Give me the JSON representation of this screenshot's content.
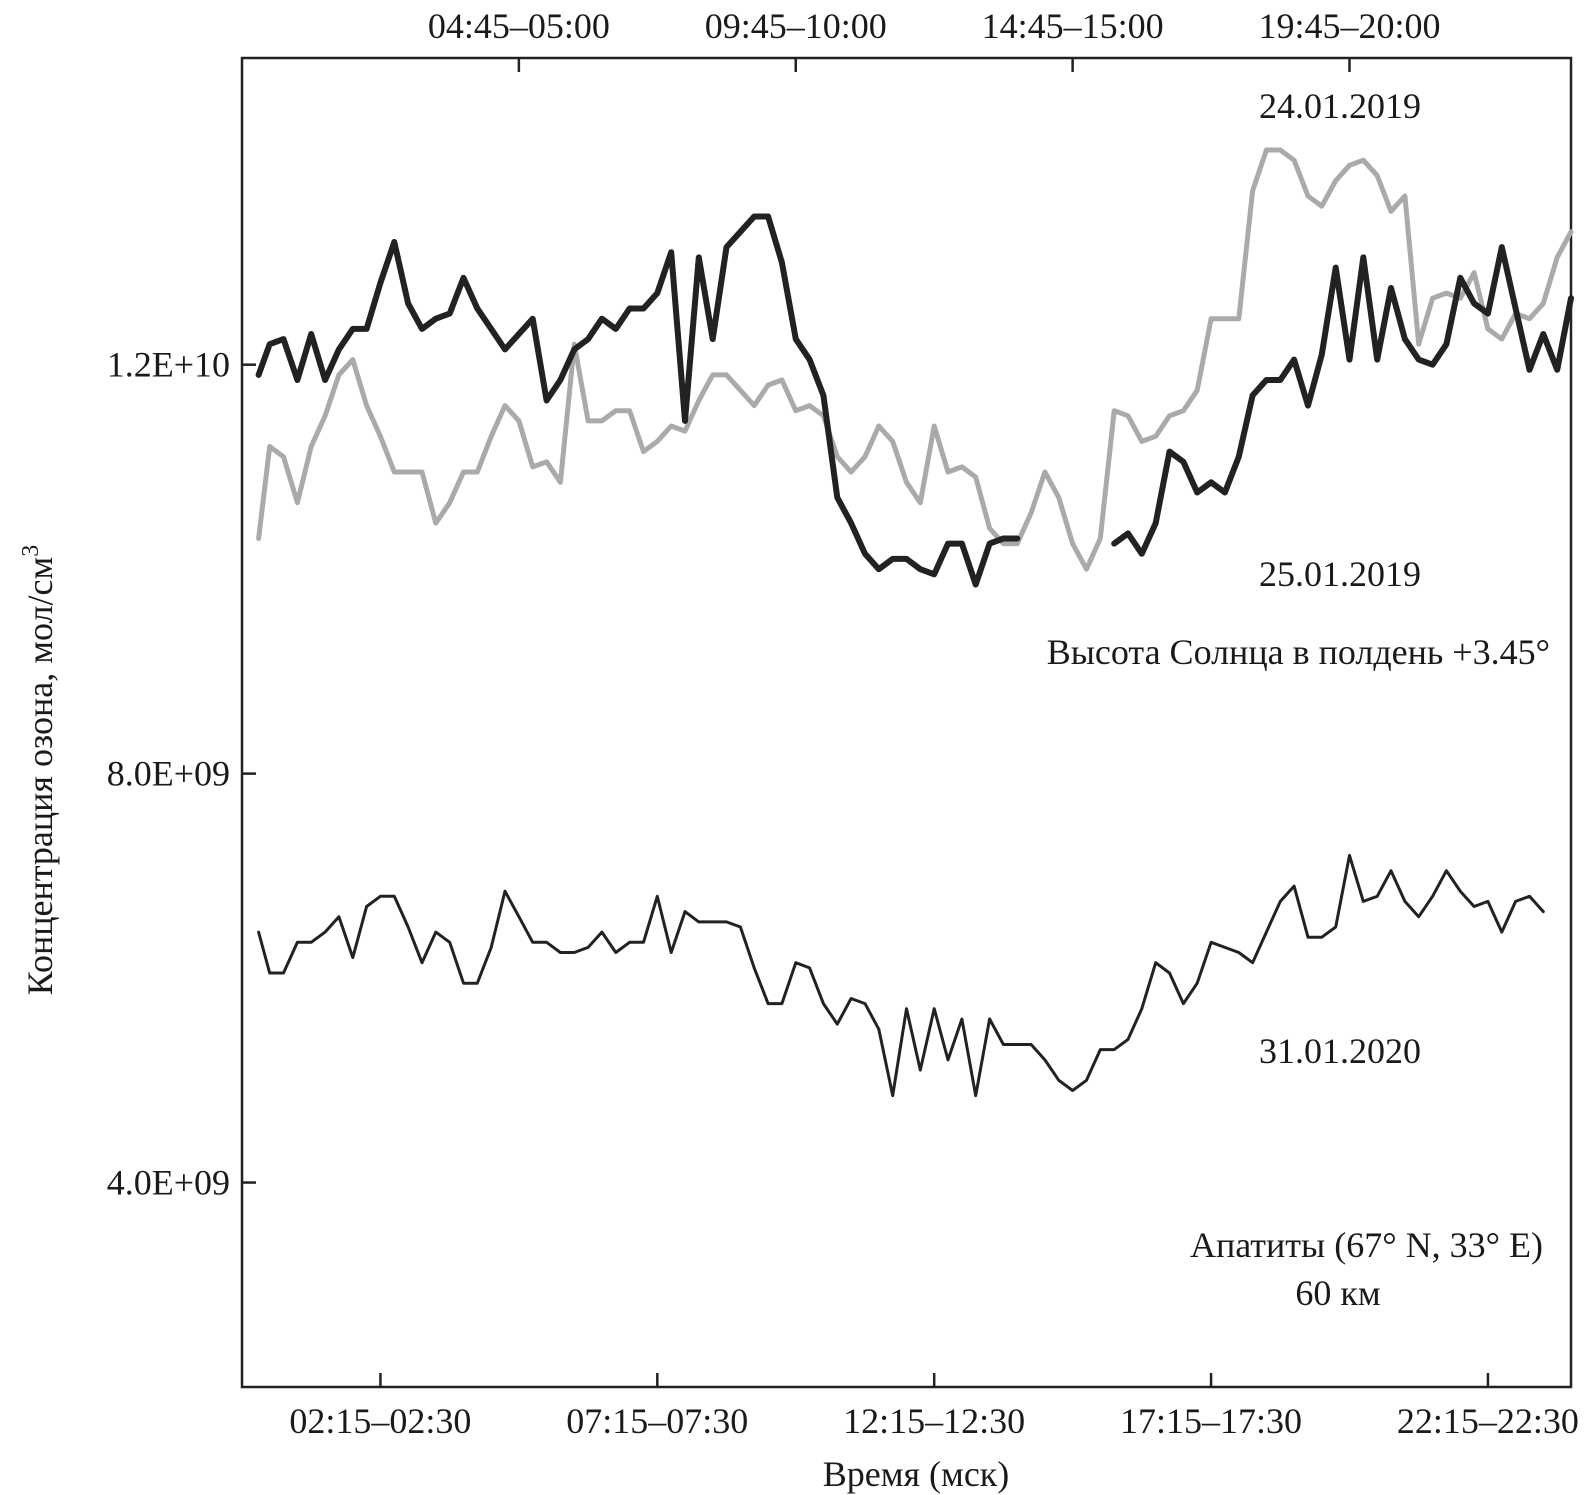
{
  "chart_data": {
    "type": "line",
    "xlabel": "Время (мск)",
    "ylabel": "Концентрация озона, мол/см",
    "ylabel_superscript": "3",
    "xlim": [
      0,
      48
    ],
    "ylim": [
      2000000000,
      15000000000
    ],
    "x_ticks_bottom": [
      {
        "x": 5,
        "label": "02:15–02:30"
      },
      {
        "x": 15,
        "label": "07:15–07:30"
      },
      {
        "x": 25,
        "label": "12:15–12:30"
      },
      {
        "x": 35,
        "label": "17:15–17:30"
      },
      {
        "x": 45,
        "label": "22:15–22:30"
      }
    ],
    "x_ticks_top": [
      {
        "x": 10,
        "label": "04:45–05:00"
      },
      {
        "x": 20,
        "label": "09:45–10:00"
      },
      {
        "x": 30,
        "label": "14:45–15:00"
      },
      {
        "x": 40,
        "label": "19:45–20:00"
      }
    ],
    "y_ticks": [
      {
        "y": 4000000000,
        "label": "4.0E+09"
      },
      {
        "y": 8000000000,
        "label": "8.0E+09"
      },
      {
        "y": 12000000000,
        "label": "1.2E+10"
      }
    ],
    "annotations": [
      {
        "id": "label-24",
        "text": "24.01.2019"
      },
      {
        "id": "label-25",
        "text": "25.01.2019"
      },
      {
        "id": "sun-height",
        "text": "Высота Солнца в полдень +3.45°"
      },
      {
        "id": "label-31",
        "text": "31.01.2020"
      },
      {
        "id": "station",
        "text": "Апатиты (67° N, 33° E)"
      },
      {
        "id": "altitude",
        "text": "60 км"
      }
    ],
    "series": [
      {
        "name": "24.01.2019",
        "color": "#aaaaaa",
        "width": 5,
        "points": [
          [
            0.6,
            10.3
          ],
          [
            1.0,
            11.2
          ],
          [
            1.5,
            11.1
          ],
          [
            2.0,
            10.65
          ],
          [
            2.5,
            11.2
          ],
          [
            3.0,
            11.5
          ],
          [
            3.5,
            11.9
          ],
          [
            4.0,
            12.05
          ],
          [
            4.5,
            11.6
          ],
          [
            5.0,
            11.3
          ],
          [
            5.5,
            10.95
          ],
          [
            6.0,
            10.95
          ],
          [
            6.5,
            10.95
          ],
          [
            7.0,
            10.45
          ],
          [
            7.5,
            10.65
          ],
          [
            8.0,
            10.95
          ],
          [
            8.5,
            10.95
          ],
          [
            9.0,
            11.3
          ],
          [
            9.5,
            11.6
          ],
          [
            10.0,
            11.45
          ],
          [
            10.5,
            11.0
          ],
          [
            11.0,
            11.05
          ],
          [
            11.5,
            10.85
          ],
          [
            12.0,
            12.2
          ],
          [
            12.5,
            11.45
          ],
          [
            13.0,
            11.45
          ],
          [
            13.5,
            11.55
          ],
          [
            14.0,
            11.55
          ],
          [
            14.5,
            11.15
          ],
          [
            15.0,
            11.25
          ],
          [
            15.5,
            11.4
          ],
          [
            16.0,
            11.35
          ],
          [
            16.5,
            11.65
          ],
          [
            17.0,
            11.9
          ],
          [
            17.5,
            11.9
          ],
          [
            18.0,
            11.75
          ],
          [
            18.5,
            11.6
          ],
          [
            19.0,
            11.8
          ],
          [
            19.5,
            11.85
          ],
          [
            20.0,
            11.55
          ],
          [
            20.5,
            11.6
          ],
          [
            21.0,
            11.5
          ],
          [
            21.5,
            11.1
          ],
          [
            22.0,
            10.95
          ],
          [
            22.5,
            11.1
          ],
          [
            23.0,
            11.4
          ],
          [
            23.5,
            11.25
          ],
          [
            24.0,
            10.85
          ],
          [
            24.5,
            10.65
          ],
          [
            25.0,
            11.4
          ],
          [
            25.5,
            10.95
          ],
          [
            26.0,
            11.0
          ],
          [
            26.5,
            10.9
          ],
          [
            27.0,
            10.4
          ],
          [
            27.5,
            10.25
          ],
          [
            28.0,
            10.25
          ],
          [
            28.5,
            10.55
          ],
          [
            29.0,
            10.95
          ],
          [
            29.5,
            10.7
          ],
          [
            30.0,
            10.25
          ],
          [
            30.5,
            10.0
          ],
          [
            31.0,
            10.3
          ],
          [
            31.5,
            11.55
          ],
          [
            32.0,
            11.5
          ],
          [
            32.5,
            11.25
          ],
          [
            33.0,
            11.3
          ],
          [
            33.5,
            11.5
          ],
          [
            34.0,
            11.55
          ],
          [
            34.5,
            11.75
          ],
          [
            35.0,
            12.45
          ],
          [
            35.5,
            12.45
          ],
          [
            36.0,
            12.45
          ],
          [
            36.5,
            13.7
          ],
          [
            37.0,
            14.1
          ],
          [
            37.5,
            14.1
          ],
          [
            38.0,
            14.0
          ],
          [
            38.5,
            13.65
          ],
          [
            39.0,
            13.55
          ],
          [
            39.5,
            13.8
          ],
          [
            40.0,
            13.95
          ],
          [
            40.5,
            14.0
          ],
          [
            41.0,
            13.85
          ],
          [
            41.5,
            13.5
          ],
          [
            42.0,
            13.65
          ],
          [
            42.5,
            12.2
          ],
          [
            43.0,
            12.65
          ],
          [
            43.5,
            12.7
          ],
          [
            44.0,
            12.65
          ],
          [
            44.5,
            12.9
          ],
          [
            45.0,
            12.35
          ],
          [
            45.5,
            12.25
          ],
          [
            46.0,
            12.5
          ],
          [
            46.5,
            12.45
          ],
          [
            47.0,
            12.6
          ],
          [
            47.5,
            13.05
          ],
          [
            48.0,
            13.3
          ]
        ]
      },
      {
        "name": "25.01.2019",
        "color": "#222222",
        "width": 6,
        "points": [
          [
            0.6,
            11.9
          ],
          [
            1.0,
            12.2
          ],
          [
            1.5,
            12.25
          ],
          [
            2.0,
            11.85
          ],
          [
            2.5,
            12.3
          ],
          [
            3.0,
            11.85
          ],
          [
            3.5,
            12.15
          ],
          [
            4.0,
            12.35
          ],
          [
            4.5,
            12.35
          ],
          [
            5.0,
            12.8
          ],
          [
            5.5,
            13.2
          ],
          [
            6.0,
            12.6
          ],
          [
            6.5,
            12.35
          ],
          [
            7.0,
            12.45
          ],
          [
            7.5,
            12.5
          ],
          [
            8.0,
            12.85
          ],
          [
            8.5,
            12.55
          ],
          [
            9.0,
            12.35
          ],
          [
            9.5,
            12.15
          ],
          [
            10.0,
            12.3
          ],
          [
            10.5,
            12.45
          ],
          [
            11.0,
            11.65
          ],
          [
            11.5,
            11.85
          ],
          [
            12.0,
            12.15
          ],
          [
            12.5,
            12.25
          ],
          [
            13.0,
            12.45
          ],
          [
            13.5,
            12.35
          ],
          [
            14.0,
            12.55
          ],
          [
            14.5,
            12.55
          ],
          [
            15.0,
            12.7
          ],
          [
            15.5,
            13.1
          ],
          [
            16.0,
            11.45
          ],
          [
            16.5,
            13.05
          ],
          [
            17.0,
            12.25
          ],
          [
            17.5,
            13.15
          ],
          [
            18.0,
            13.3
          ],
          [
            18.5,
            13.45
          ],
          [
            19.0,
            13.45
          ],
          [
            19.5,
            13.0
          ],
          [
            20.0,
            12.25
          ],
          [
            20.5,
            12.05
          ],
          [
            21.0,
            11.7
          ],
          [
            21.5,
            10.7
          ],
          [
            22.0,
            10.45
          ],
          [
            22.5,
            10.15
          ],
          [
            23.0,
            10.0
          ],
          [
            23.5,
            10.1
          ],
          [
            24.0,
            10.1
          ],
          [
            24.5,
            10.0
          ],
          [
            25.0,
            9.95
          ],
          [
            25.5,
            10.25
          ],
          [
            26.0,
            10.25
          ],
          [
            26.5,
            9.85
          ],
          [
            27.0,
            10.25
          ],
          [
            27.5,
            10.3
          ],
          [
            28.0,
            10.3
          ],
          [
            29.0,
            null
          ],
          [
            30.0,
            null
          ],
          [
            31.0,
            null
          ],
          [
            31.5,
            10.25
          ],
          [
            32.0,
            10.35
          ],
          [
            32.5,
            10.15
          ],
          [
            33.0,
            10.45
          ],
          [
            33.5,
            11.15
          ],
          [
            34.0,
            11.05
          ],
          [
            34.5,
            10.75
          ],
          [
            35.0,
            10.85
          ],
          [
            35.5,
            10.75
          ],
          [
            36.0,
            11.1
          ],
          [
            36.5,
            11.7
          ],
          [
            37.0,
            11.85
          ],
          [
            37.5,
            11.85
          ],
          [
            38.0,
            12.05
          ],
          [
            38.5,
            11.6
          ],
          [
            39.0,
            12.1
          ],
          [
            39.5,
            12.95
          ],
          [
            40.0,
            12.05
          ],
          [
            40.5,
            13.05
          ],
          [
            41.0,
            12.05
          ],
          [
            41.5,
            12.75
          ],
          [
            42.0,
            12.25
          ],
          [
            42.5,
            12.05
          ],
          [
            43.0,
            12.0
          ],
          [
            43.5,
            12.2
          ],
          [
            44.0,
            12.85
          ],
          [
            44.5,
            12.6
          ],
          [
            45.0,
            12.5
          ],
          [
            45.5,
            13.15
          ],
          [
            46.0,
            12.55
          ],
          [
            46.5,
            11.95
          ],
          [
            47.0,
            12.3
          ],
          [
            47.5,
            11.95
          ],
          [
            48.0,
            12.65
          ]
        ]
      },
      {
        "name": "31.01.2020",
        "color": "#222222",
        "width": 3,
        "points": [
          [
            0.6,
            6.45
          ],
          [
            1.0,
            6.05
          ],
          [
            1.5,
            6.05
          ],
          [
            2.0,
            6.35
          ],
          [
            2.5,
            6.35
          ],
          [
            3.0,
            6.45
          ],
          [
            3.5,
            6.6
          ],
          [
            4.0,
            6.2
          ],
          [
            4.5,
            6.7
          ],
          [
            5.0,
            6.8
          ],
          [
            5.5,
            6.8
          ],
          [
            6.0,
            6.5
          ],
          [
            6.5,
            6.15
          ],
          [
            7.0,
            6.45
          ],
          [
            7.5,
            6.35
          ],
          [
            8.0,
            5.95
          ],
          [
            8.5,
            5.95
          ],
          [
            9.0,
            6.3
          ],
          [
            9.5,
            6.85
          ],
          [
            10.0,
            6.6
          ],
          [
            10.5,
            6.35
          ],
          [
            11.0,
            6.35
          ],
          [
            11.5,
            6.25
          ],
          [
            12.0,
            6.25
          ],
          [
            12.5,
            6.3
          ],
          [
            13.0,
            6.45
          ],
          [
            13.5,
            6.25
          ],
          [
            14.0,
            6.35
          ],
          [
            14.5,
            6.35
          ],
          [
            15.0,
            6.8
          ],
          [
            15.5,
            6.25
          ],
          [
            16.0,
            6.65
          ],
          [
            16.5,
            6.55
          ],
          [
            17.0,
            6.55
          ],
          [
            17.5,
            6.55
          ],
          [
            18.0,
            6.5
          ],
          [
            18.5,
            6.1
          ],
          [
            19.0,
            5.75
          ],
          [
            19.5,
            5.75
          ],
          [
            20.0,
            6.15
          ],
          [
            20.5,
            6.1
          ],
          [
            21.0,
            5.75
          ],
          [
            21.5,
            5.55
          ],
          [
            22.0,
            5.8
          ],
          [
            22.5,
            5.75
          ],
          [
            23.0,
            5.5
          ],
          [
            23.5,
            4.85
          ],
          [
            24.0,
            5.7
          ],
          [
            24.5,
            5.1
          ],
          [
            25.0,
            5.7
          ],
          [
            25.5,
            5.2
          ],
          [
            26.0,
            5.6
          ],
          [
            26.5,
            4.85
          ],
          [
            27.0,
            5.6
          ],
          [
            27.5,
            5.35
          ],
          [
            28.0,
            5.35
          ],
          [
            28.5,
            5.35
          ],
          [
            29.0,
            5.2
          ],
          [
            29.5,
            5.0
          ],
          [
            30.0,
            4.9
          ],
          [
            30.5,
            5.0
          ],
          [
            31.0,
            5.3
          ],
          [
            31.5,
            5.3
          ],
          [
            32.0,
            5.4
          ],
          [
            32.5,
            5.7
          ],
          [
            33.0,
            6.15
          ],
          [
            33.5,
            6.05
          ],
          [
            34.0,
            5.75
          ],
          [
            34.5,
            5.95
          ],
          [
            35.0,
            6.35
          ],
          [
            35.5,
            6.3
          ],
          [
            36.0,
            6.25
          ],
          [
            36.5,
            6.15
          ],
          [
            37.0,
            6.45
          ],
          [
            37.5,
            6.75
          ],
          [
            38.0,
            6.9
          ],
          [
            38.5,
            6.4
          ],
          [
            39.0,
            6.4
          ],
          [
            39.5,
            6.5
          ],
          [
            40.0,
            7.2
          ],
          [
            40.5,
            6.75
          ],
          [
            41.0,
            6.8
          ],
          [
            41.5,
            7.05
          ],
          [
            42.0,
            6.75
          ],
          [
            42.5,
            6.6
          ],
          [
            43.0,
            6.8
          ],
          [
            43.5,
            7.05
          ],
          [
            44.0,
            6.85
          ],
          [
            44.5,
            6.7
          ],
          [
            45.0,
            6.75
          ],
          [
            45.5,
            6.45
          ],
          [
            46.0,
            6.75
          ],
          [
            46.5,
            6.8
          ],
          [
            47.0,
            6.65
          ]
        ]
      }
    ]
  }
}
